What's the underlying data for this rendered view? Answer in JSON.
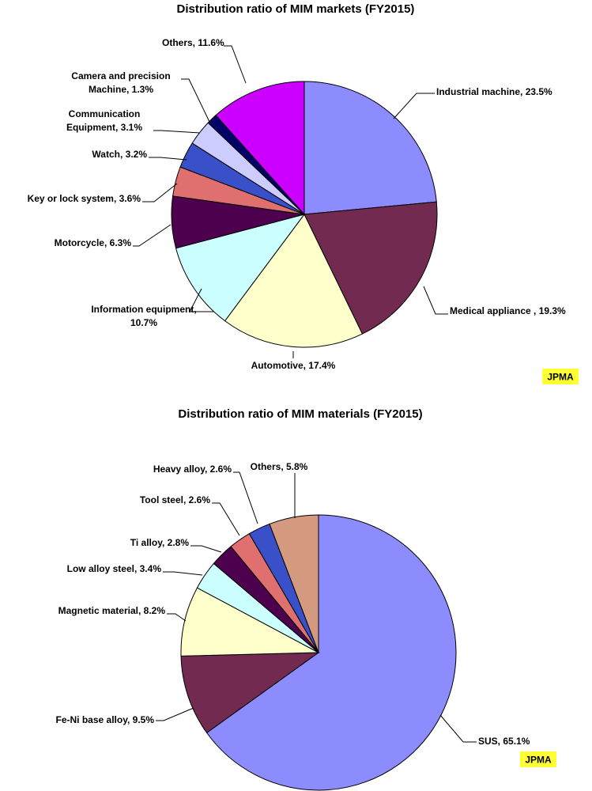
{
  "chart_data": [
    {
      "type": "pie",
      "title": "Distribution ratio of MIM markets (FY2015)",
      "badge": "JPMA",
      "slices": [
        {
          "label": "Industrial machine, 23.5%",
          "value": 23.5,
          "color": "#8c8cff"
        },
        {
          "label": "Medical appliance , 19.3%",
          "value": 19.3,
          "color": "#732a50"
        },
        {
          "label": "Automotive, 17.4%",
          "value": 17.4,
          "color": "#ffffcc"
        },
        {
          "label": "Information equipment, 10.7%",
          "value": 10.7,
          "color": "#ccffff"
        },
        {
          "label": "Motorcycle, 6.3%",
          "value": 6.3,
          "color": "#4d004d"
        },
        {
          "label": "Key or lock system, 3.6%",
          "value": 3.6,
          "color": "#e07070"
        },
        {
          "label": "Watch, 3.2%",
          "value": 3.2,
          "color": "#3a50c8"
        },
        {
          "label": "Communication Equipment, 3.1%",
          "value": 3.1,
          "color": "#ccccff"
        },
        {
          "label": "Camera and precision Machine, 1.3%",
          "value": 1.3,
          "color": "#000066"
        },
        {
          "label": "Others, 11.6%",
          "value": 11.6,
          "color": "#cc00ff"
        }
      ]
    },
    {
      "type": "pie",
      "title": "Distribution ratio of MIM materials (FY2015)",
      "badge": "JPMA",
      "slices": [
        {
          "label": "SUS, 65.1%",
          "value": 65.1,
          "color": "#8c8cff"
        },
        {
          "label": "Fe-Ni base alloy, 9.5%",
          "value": 9.5,
          "color": "#732a50"
        },
        {
          "label": "Magnetic material, 8.2%",
          "value": 8.2,
          "color": "#ffffcc"
        },
        {
          "label": "Low alloy steel, 3.4%",
          "value": 3.4,
          "color": "#ccffff"
        },
        {
          "label": "Ti alloy, 2.8%",
          "value": 2.8,
          "color": "#4d004d"
        },
        {
          "label": "Tool steel, 2.6%",
          "value": 2.6,
          "color": "#e07070"
        },
        {
          "label": "Heavy alloy, 2.6%",
          "value": 2.6,
          "color": "#3a50c8"
        },
        {
          "label": "Others, 5.8%",
          "value": 5.8,
          "color": "#d49a80"
        }
      ]
    }
  ]
}
